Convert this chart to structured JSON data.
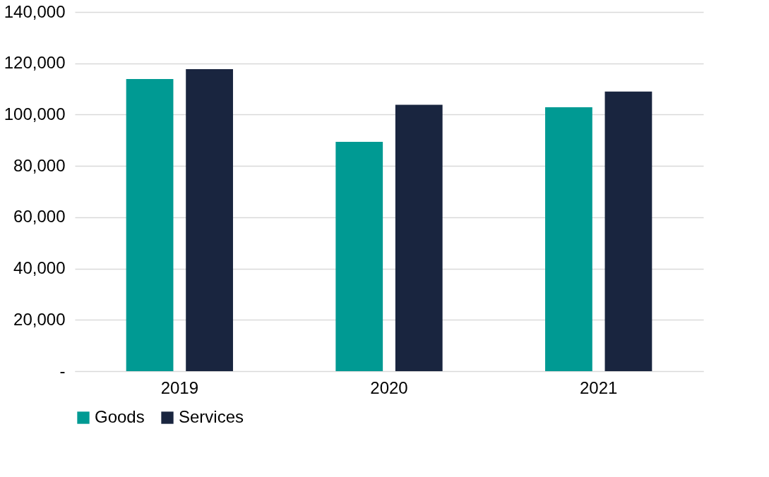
{
  "chart_data": {
    "type": "bar",
    "categories": [
      "2019",
      "2020",
      "2021"
    ],
    "series": [
      {
        "name": "Goods",
        "color": "#009a93",
        "values": [
          113900,
          89400,
          102900
        ]
      },
      {
        "name": "Services",
        "color": "#19253f",
        "values": [
          117700,
          103800,
          109000
        ]
      }
    ],
    "ylim": [
      0,
      140000
    ],
    "yticks": [
      {
        "value": 0,
        "label": "-"
      },
      {
        "value": 20000,
        "label": "20,000"
      },
      {
        "value": 40000,
        "label": "40,000"
      },
      {
        "value": 60000,
        "label": "60,000"
      },
      {
        "value": 80000,
        "label": "80,000"
      },
      {
        "value": 100000,
        "label": "100,000"
      },
      {
        "value": 120000,
        "label": "120,000"
      },
      {
        "value": 140000,
        "label": "140,000"
      }
    ],
    "grid": "y",
    "legend": "bottom"
  }
}
